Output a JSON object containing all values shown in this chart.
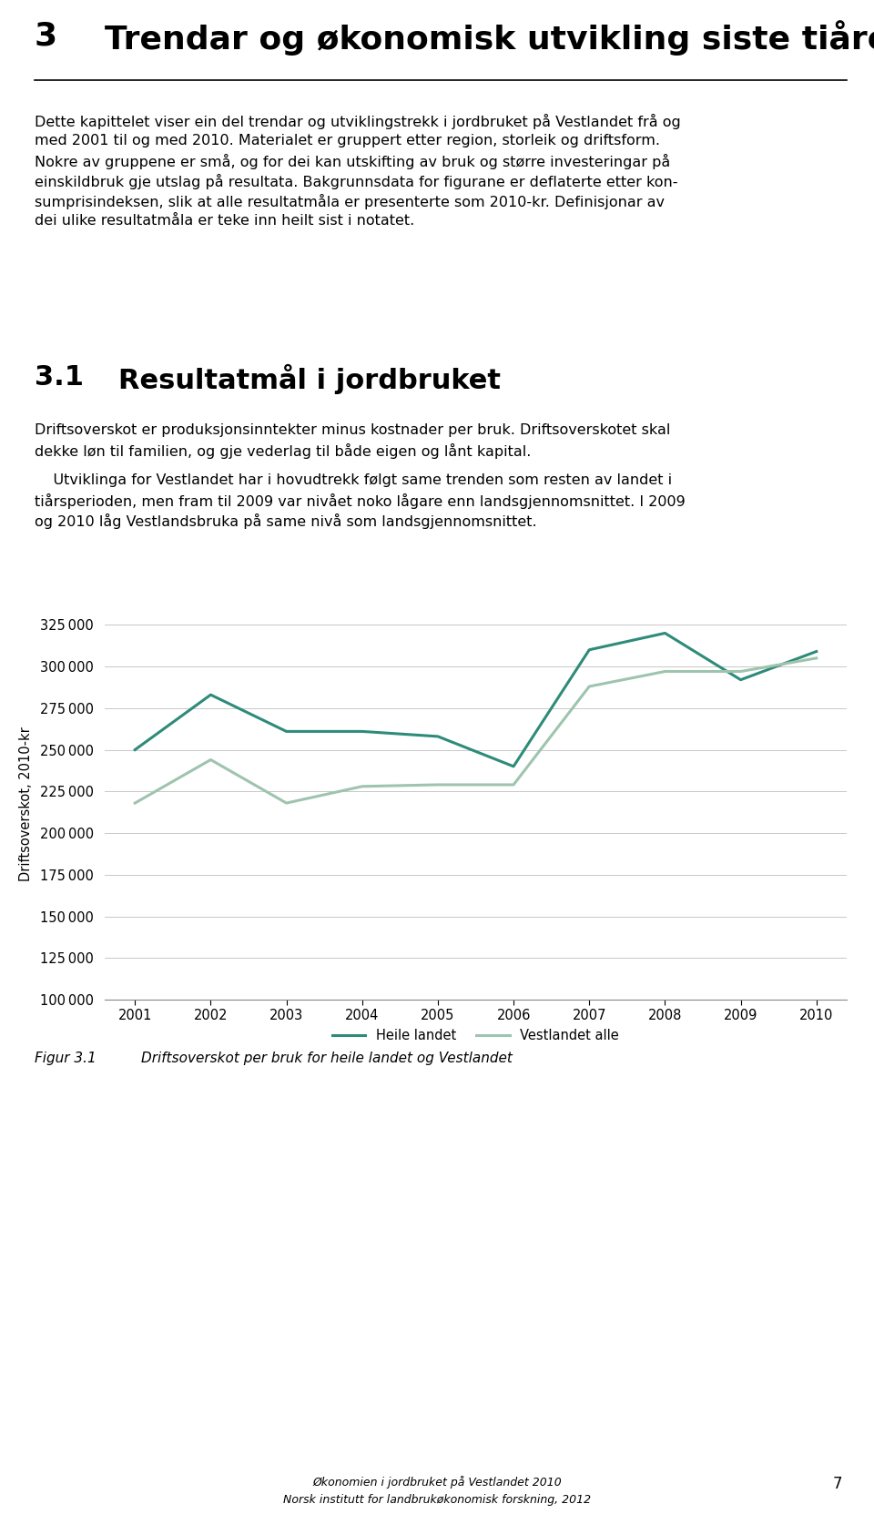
{
  "title_number": "3",
  "title_text": "Trendar og økonomisk utvikling siste tiåret",
  "section_number": "3.1",
  "section_title": "Resultatmål i jordbruket",
  "intro_lines": [
    "Dette kapittelet viser ein del trendar og utviklingstrekk i jordbruket på Vestlandet frå og",
    "med 2001 til og med 2010. Materialet er gruppert etter region, storleik og driftsform.",
    "Nokre av gruppene er små, og for dei kan utskifting av bruk og større investeringar på",
    "einskildbruk gje utslag på resultata. Bakgrunnsdata for figurane er deflaterte etter kon-",
    "sumprisindeksen, slik at alle resultatmåla er presenterte som 2010-kr. Definisjonar av",
    "dei ulike resultatmåla er teke inn heilt sist i notatet."
  ],
  "para1_lines": [
    "Driftsoverskot er produksjonsinntekter minus kostnader per bruk. Driftsoverskotet skal",
    "dekke løn til familien, og gje vederlag til både eigen og lånt kapital."
  ],
  "para2_lines": [
    "    Utviklinga for Vestlandet har i hovudtrekk følgt same trenden som resten av landet i",
    "tiårsperioden, men fram til 2009 var nivået noko lågare enn landsgjennomsnittet. I 2009",
    "og 2010 låg Vestlandsbruka på same nivå som landsgjennomsnittet."
  ],
  "years": [
    2001,
    2002,
    2003,
    2004,
    2005,
    2006,
    2007,
    2008,
    2009,
    2010
  ],
  "heile_landet": [
    250000,
    283000,
    261000,
    261000,
    258000,
    240000,
    310000,
    320000,
    292000,
    309000
  ],
  "vestlandet_alle": [
    218000,
    244000,
    218000,
    228000,
    229000,
    229000,
    288000,
    297000,
    297000,
    305000
  ],
  "ylabel": "Driftsoverskot, 2010-kr",
  "ylim": [
    100000,
    335000
  ],
  "yticks": [
    100000,
    125000,
    150000,
    175000,
    200000,
    225000,
    250000,
    275000,
    300000,
    325000
  ],
  "legend_heile": "Heile landet",
  "legend_vest": "Vestlandet alle",
  "color_heile": "#2e8b7a",
  "color_vest": "#9ec4ae",
  "fig_caption_label": "Figur 3.1",
  "fig_caption_text": "    Driftsoverskot per bruk for heile landet og Vestlandet",
  "footer_line1": "Økonomien i jordbruket på Vestlandet 2010",
  "footer_line2": "Norsk institutt for landbrukøkonomisk forskning, 2012",
  "page_number": "7",
  "background_color": "#ffffff",
  "grid_color": "#c8c8c8",
  "title_fontsize": 26,
  "section_fontsize": 22,
  "body_fontsize": 11.5,
  "tick_fontsize": 10.5
}
